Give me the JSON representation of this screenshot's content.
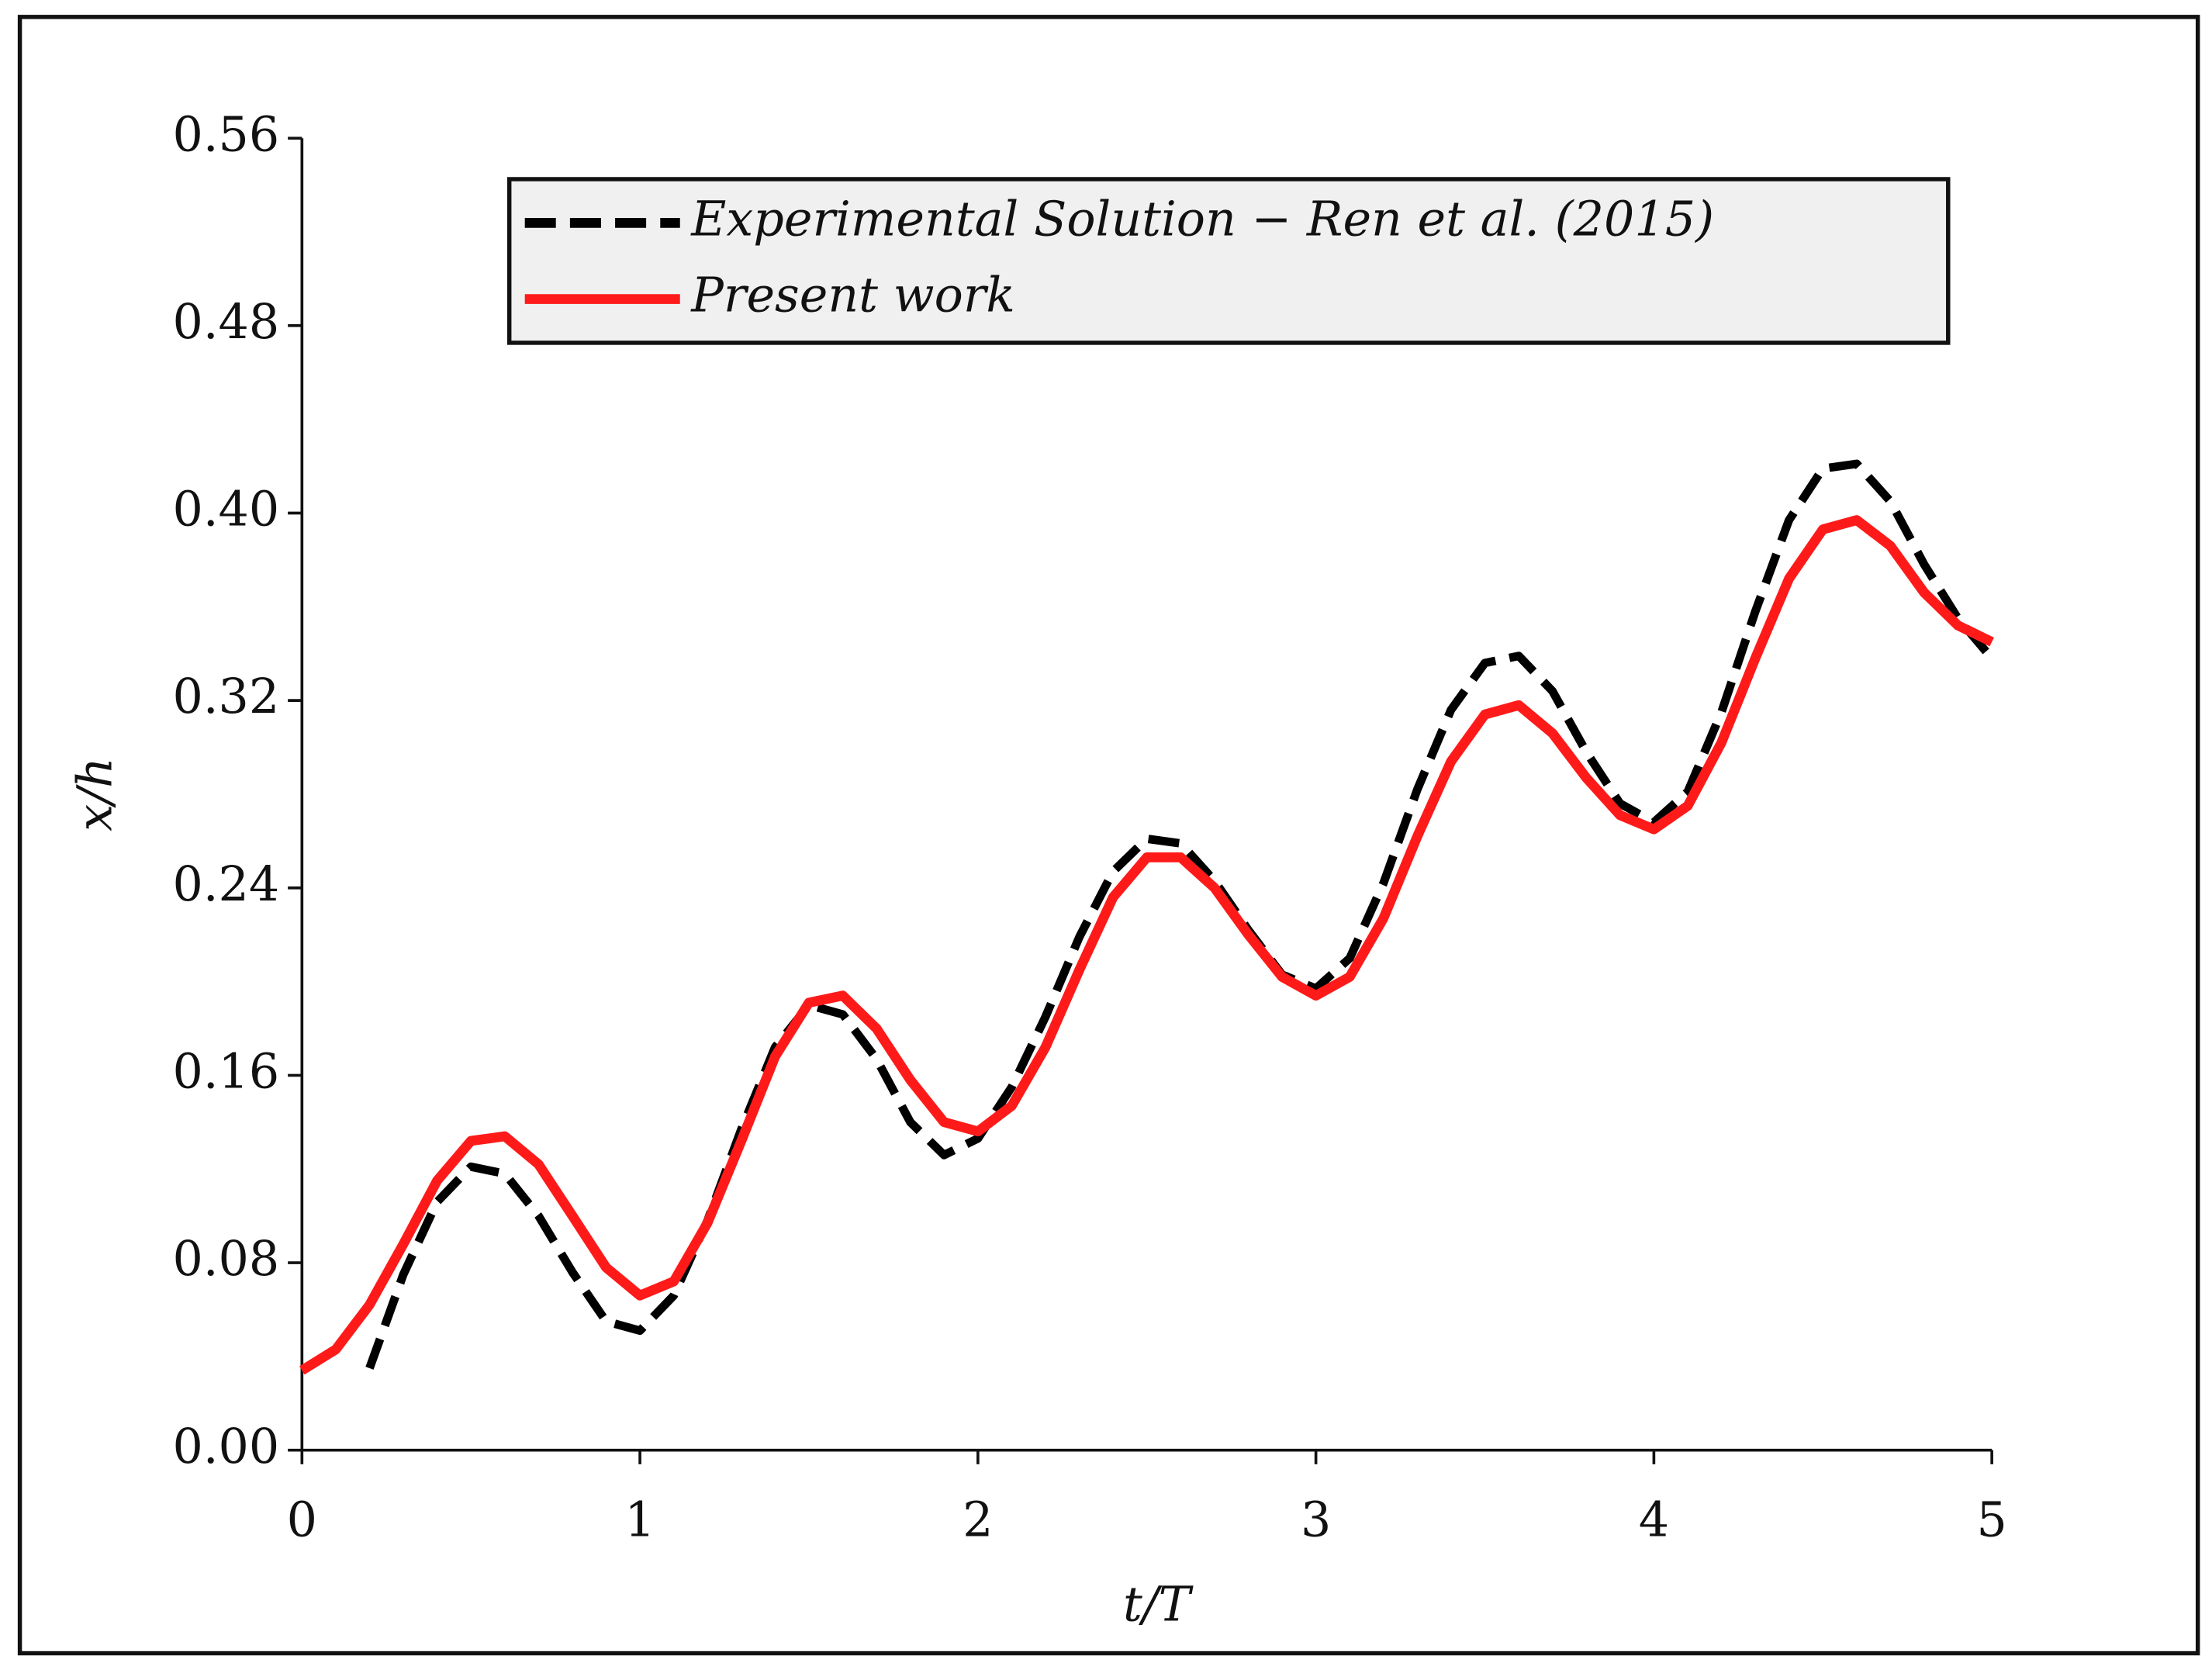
{
  "chart_data": {
    "type": "line",
    "xlabel": "t/T",
    "ylabel": "x/h",
    "x": [
      0,
      0.1,
      0.2,
      0.3,
      0.4,
      0.5,
      0.6,
      0.7,
      0.8,
      0.9,
      1.0,
      1.1,
      1.2,
      1.3,
      1.4,
      1.5,
      1.6,
      1.7,
      1.8,
      1.9,
      2.0,
      2.1,
      2.2,
      2.3,
      2.4,
      2.5,
      2.6,
      2.7,
      2.8,
      2.9,
      3.0,
      3.1,
      3.2,
      3.3,
      3.4,
      3.5,
      3.6,
      3.7,
      3.8,
      3.9,
      4.0,
      4.1,
      4.2,
      4.3,
      4.4,
      4.5,
      4.6,
      4.7,
      4.8,
      4.9,
      5.0
    ],
    "series": [
      {
        "name": "Experimental Solution − Ren et al. (2015)",
        "color": "#000000",
        "dash": true,
        "values": [
          null,
          null,
          0.035,
          0.075,
          0.106,
          0.121,
          0.118,
          0.1,
          0.076,
          0.055,
          0.051,
          0.066,
          0.098,
          0.137,
          0.172,
          0.19,
          0.186,
          0.167,
          0.14,
          0.126,
          0.133,
          0.155,
          0.185,
          0.219,
          0.247,
          0.261,
          0.259,
          0.243,
          0.222,
          0.203,
          0.197,
          0.21,
          0.242,
          0.282,
          0.316,
          0.336,
          0.339,
          0.324,
          0.298,
          0.276,
          0.268,
          0.281,
          0.315,
          0.358,
          0.397,
          0.419,
          0.421,
          0.405,
          0.378,
          0.355,
          0.338
        ]
      },
      {
        "name": "Present work",
        "color": "#ff1a1a",
        "dash": false,
        "values": [
          0.034,
          0.043,
          0.062,
          0.088,
          0.115,
          0.132,
          0.134,
          0.122,
          0.1,
          0.078,
          0.066,
          0.072,
          0.097,
          0.132,
          0.168,
          0.191,
          0.194,
          0.18,
          0.158,
          0.14,
          0.136,
          0.147,
          0.172,
          0.205,
          0.236,
          0.253,
          0.253,
          0.24,
          0.22,
          0.202,
          0.194,
          0.202,
          0.227,
          0.262,
          0.294,
          0.314,
          0.318,
          0.306,
          0.287,
          0.271,
          0.265,
          0.275,
          0.302,
          0.338,
          0.372,
          0.393,
          0.397,
          0.386,
          0.366,
          0.352,
          0.345
        ]
      }
    ],
    "xlim": [
      0,
      5
    ],
    "xticks": [
      0,
      1,
      2,
      3,
      4,
      5
    ],
    "ylim": [
      0,
      0.56
    ],
    "yticks": [
      {
        "value": 0,
        "label": "0.00"
      },
      0.08,
      0.16,
      0.24,
      0.32,
      {
        "value": 0.4,
        "label": "0.40"
      },
      0.48,
      0.56
    ],
    "legend": "upper center"
  }
}
